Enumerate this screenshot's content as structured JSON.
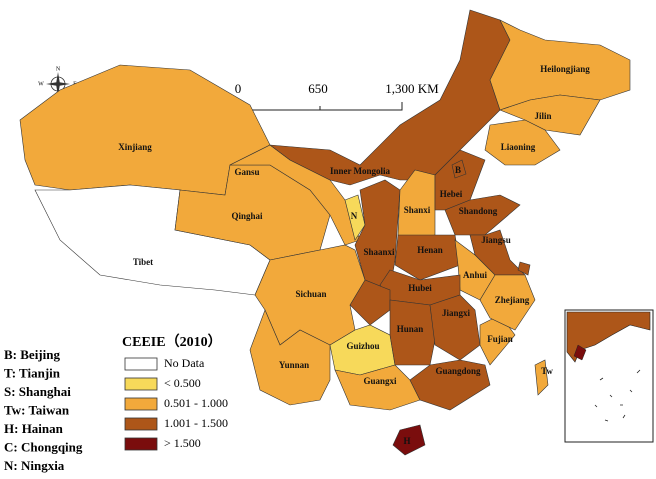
{
  "legend": {
    "title": "CEEIE（2010）",
    "items": [
      {
        "label": "No Data",
        "color": "#ffffff"
      },
      {
        "label": "< 0.500",
        "color": "#f7d95a"
      },
      {
        "label": "0.501 - 1.000",
        "color": "#f2a93b"
      },
      {
        "label": "1.001 - 1.500",
        "color": "#ad5619"
      },
      {
        "label": "> 1.500",
        "color": "#7a0d0d"
      }
    ]
  },
  "key": [
    "B:  Beijing",
    "T:  Tianjin",
    "S:  Shanghai",
    "Tw:  Taiwan",
    "H:  Hainan",
    "C:  Chongqing",
    "N:  Ningxia"
  ],
  "scale_bar": [
    "0",
    "650",
    "1,300 KM"
  ],
  "compass": [
    "N",
    "S",
    "W",
    "E"
  ],
  "regions": [
    {
      "label": "Xinjiang",
      "color": "#f2a93b"
    },
    {
      "label": "Tibet",
      "color": "#ffffff"
    },
    {
      "label": "Qinghai",
      "color": "#f2a93b"
    },
    {
      "label": "Gansu",
      "color": "#f2a93b"
    },
    {
      "label": "Inner Mongolia",
      "color": "#ad5619"
    },
    {
      "label": "Heilongjiang",
      "color": "#f2a93b"
    },
    {
      "label": "Jilin",
      "color": "#f2a93b"
    },
    {
      "label": "Liaoning",
      "color": "#f2a93b"
    },
    {
      "label": "N",
      "color": "#f7d95a"
    },
    {
      "label": "Shaanxi",
      "color": "#ad5619"
    },
    {
      "label": "Shanxi",
      "color": "#f2a93b"
    },
    {
      "label": "Hebei",
      "color": "#ad5619"
    },
    {
      "label": "Shandong",
      "color": "#ad5619"
    },
    {
      "label": "Henan",
      "color": "#ad5619"
    },
    {
      "label": "Jiangsu",
      "color": "#ad5619"
    },
    {
      "label": "Anhui",
      "color": "#f2a93b"
    },
    {
      "label": "Hubei",
      "color": "#ad5619"
    },
    {
      "label": null,
      "color": "#ad5619"
    },
    {
      "label": "Sichuan",
      "color": "#f2a93b"
    },
    {
      "label": "Yunnan",
      "color": "#f2a93b"
    },
    {
      "label": "Guizhou",
      "color": "#f7d95a"
    },
    {
      "label": "Guangxi",
      "color": "#f2a93b"
    },
    {
      "label": "Hunan",
      "color": "#ad5619"
    },
    {
      "label": "Jiangxi",
      "color": "#ad5619"
    },
    {
      "label": "Guangdong",
      "color": "#ad5619"
    },
    {
      "label": "Fujian",
      "color": "#f2a93b"
    },
    {
      "label": "Zhejiang",
      "color": "#f2a93b"
    },
    {
      "label": null,
      "color": "#ad5619"
    },
    {
      "label": "H",
      "color": "#7a0d0d"
    },
    {
      "label": "Tw",
      "color": "#f2a93b"
    },
    {
      "label": "B",
      "color": "#ad5619"
    }
  ]
}
